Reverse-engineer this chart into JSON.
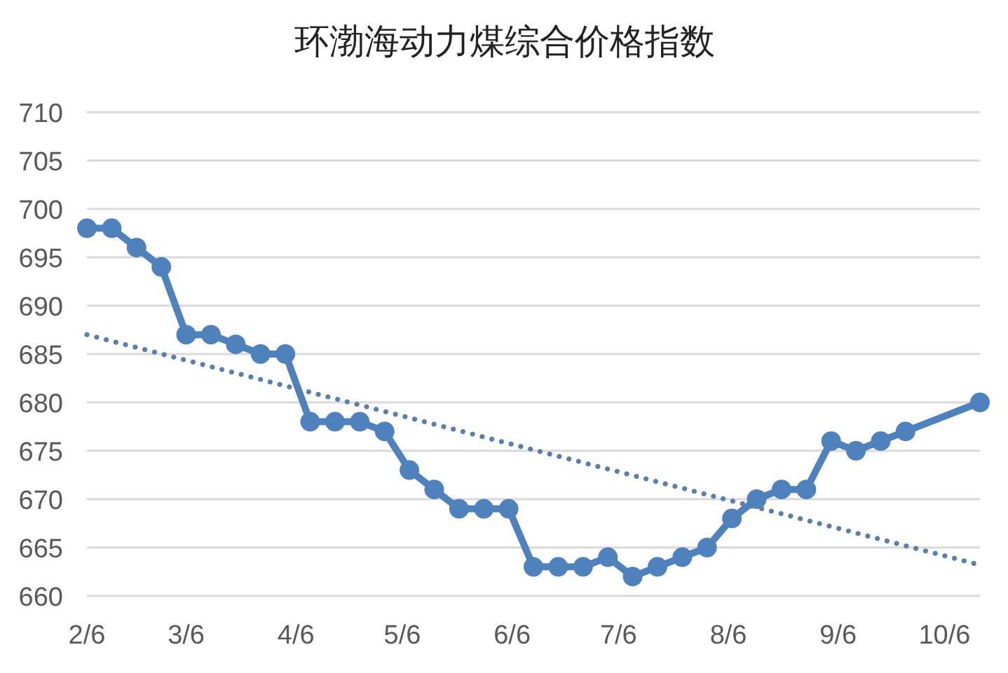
{
  "chart_data": {
    "type": "line",
    "title": "环渤海动力煤综合价格指数",
    "xlim": [
      "--02-06",
      "--10-16"
    ],
    "xticks": [
      {
        "value": "--02-06",
        "label": "2/6"
      },
      {
        "value": "--03-06",
        "label": "3/6"
      },
      {
        "value": "--04-06",
        "label": "4/6"
      },
      {
        "value": "--05-06",
        "label": "5/6"
      },
      {
        "value": "--06-06",
        "label": "6/6"
      },
      {
        "value": "--07-06",
        "label": "7/6"
      },
      {
        "value": "--08-06",
        "label": "8/6"
      },
      {
        "value": "--09-06",
        "label": "9/6"
      },
      {
        "value": "--10-06",
        "label": "10/6"
      }
    ],
    "ylim": [
      660,
      710
    ],
    "yticks": [
      660,
      665,
      670,
      675,
      680,
      685,
      690,
      695,
      700,
      705,
      710
    ],
    "grid": "y",
    "series": [
      {
        "color": "#4f81bd",
        "marker": "circle",
        "line_style": "solid",
        "x": [
          "--02-06",
          "--02-13",
          "--02-20",
          "--02-27",
          "--03-06",
          "--03-13",
          "--03-20",
          "--03-27",
          "--04-03",
          "--04-10",
          "--04-17",
          "--04-24",
          "--05-01",
          "--05-08",
          "--05-15",
          "--05-22",
          "--05-29",
          "--06-05",
          "--06-12",
          "--06-19",
          "--06-26",
          "--07-03",
          "--07-10",
          "--07-17",
          "--07-24",
          "--07-31",
          "--08-07",
          "--08-14",
          "--08-21",
          "--08-28",
          "--09-04",
          "--09-11",
          "--09-18",
          "--09-25",
          "--10-16"
        ],
        "values": [
          698,
          698,
          696,
          694,
          687,
          687,
          686,
          685,
          685,
          678,
          678,
          678,
          677,
          673,
          671,
          669,
          669,
          669,
          663,
          663,
          663,
          664,
          662,
          663,
          664,
          665,
          668,
          670,
          671,
          671,
          676,
          675,
          676,
          677,
          680
        ]
      },
      {
        "color": "#5a7fa8",
        "marker": "none",
        "line_style": "dotted",
        "x": [
          "--02-06",
          "--10-16"
        ],
        "values": [
          687,
          663.2
        ]
      }
    ]
  }
}
